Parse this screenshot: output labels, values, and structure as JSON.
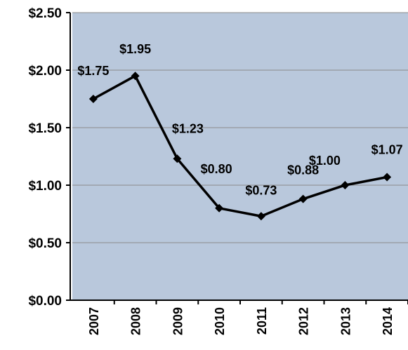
{
  "chart_data": {
    "type": "line",
    "categories": [
      "2007",
      "2008",
      "2009",
      "2010",
      "2011",
      "2012",
      "2013",
      "2014"
    ],
    "series": [
      {
        "color": "#000000",
        "values": [
          1.75,
          1.95,
          1.23,
          0.8,
          0.73,
          0.88,
          1.0,
          1.07
        ],
        "value_labels": [
          "$1.75",
          "$1.95",
          "$1.23",
          "$0.80",
          "$0.73",
          "$0.88",
          "$1.00",
          "$1.07"
        ]
      }
    ],
    "ylim": [
      0,
      2.5
    ],
    "yticks": [
      {
        "value": 0,
        "label": "$0.00"
      },
      {
        "value": 0.5,
        "label": "$0.50"
      },
      {
        "value": 1,
        "label": "$1.00"
      },
      {
        "value": 1.5,
        "label": "$1.50"
      },
      {
        "value": 2,
        "label": "$2.00"
      },
      {
        "value": 2.5,
        "label": "$2.50"
      }
    ],
    "grid": true,
    "plot_background": "#b9c8dc"
  }
}
